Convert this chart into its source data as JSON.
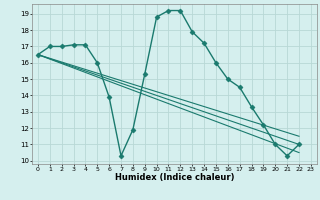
{
  "xlabel": "Humidex (Indice chaleur)",
  "background_color": "#d5efee",
  "grid_color": "#b8d8d6",
  "line_color": "#1a7a6e",
  "xlim": [
    -0.5,
    23.5
  ],
  "ylim": [
    9.8,
    19.6
  ],
  "yticks": [
    10,
    11,
    12,
    13,
    14,
    15,
    16,
    17,
    18,
    19
  ],
  "xticks": [
    0,
    1,
    2,
    3,
    4,
    5,
    6,
    7,
    8,
    9,
    10,
    11,
    12,
    13,
    14,
    15,
    16,
    17,
    18,
    19,
    20,
    21,
    22,
    23
  ],
  "series": [
    {
      "x": [
        0,
        1,
        2,
        3,
        4,
        5,
        6,
        7,
        8,
        9,
        10,
        11,
        12,
        13,
        14,
        15,
        16,
        17,
        18,
        19,
        20,
        21,
        22
      ],
      "y": [
        16.5,
        17.0,
        17.0,
        17.1,
        17.1,
        16.0,
        13.9,
        10.3,
        11.9,
        15.3,
        18.8,
        19.2,
        19.2,
        17.9,
        17.2,
        16.0,
        15.0,
        14.5,
        13.3,
        12.2,
        11.0,
        10.3,
        11.0
      ],
      "marker": "D",
      "markersize": 2.5,
      "linewidth": 1.0
    },
    {
      "x": [
        0,
        22
      ],
      "y": [
        16.5,
        10.5
      ],
      "marker": null,
      "linewidth": 0.8
    },
    {
      "x": [
        0,
        22
      ],
      "y": [
        16.5,
        11.0
      ],
      "marker": null,
      "linewidth": 0.8
    },
    {
      "x": [
        0,
        22
      ],
      "y": [
        16.5,
        11.5
      ],
      "marker": null,
      "linewidth": 0.8
    }
  ]
}
